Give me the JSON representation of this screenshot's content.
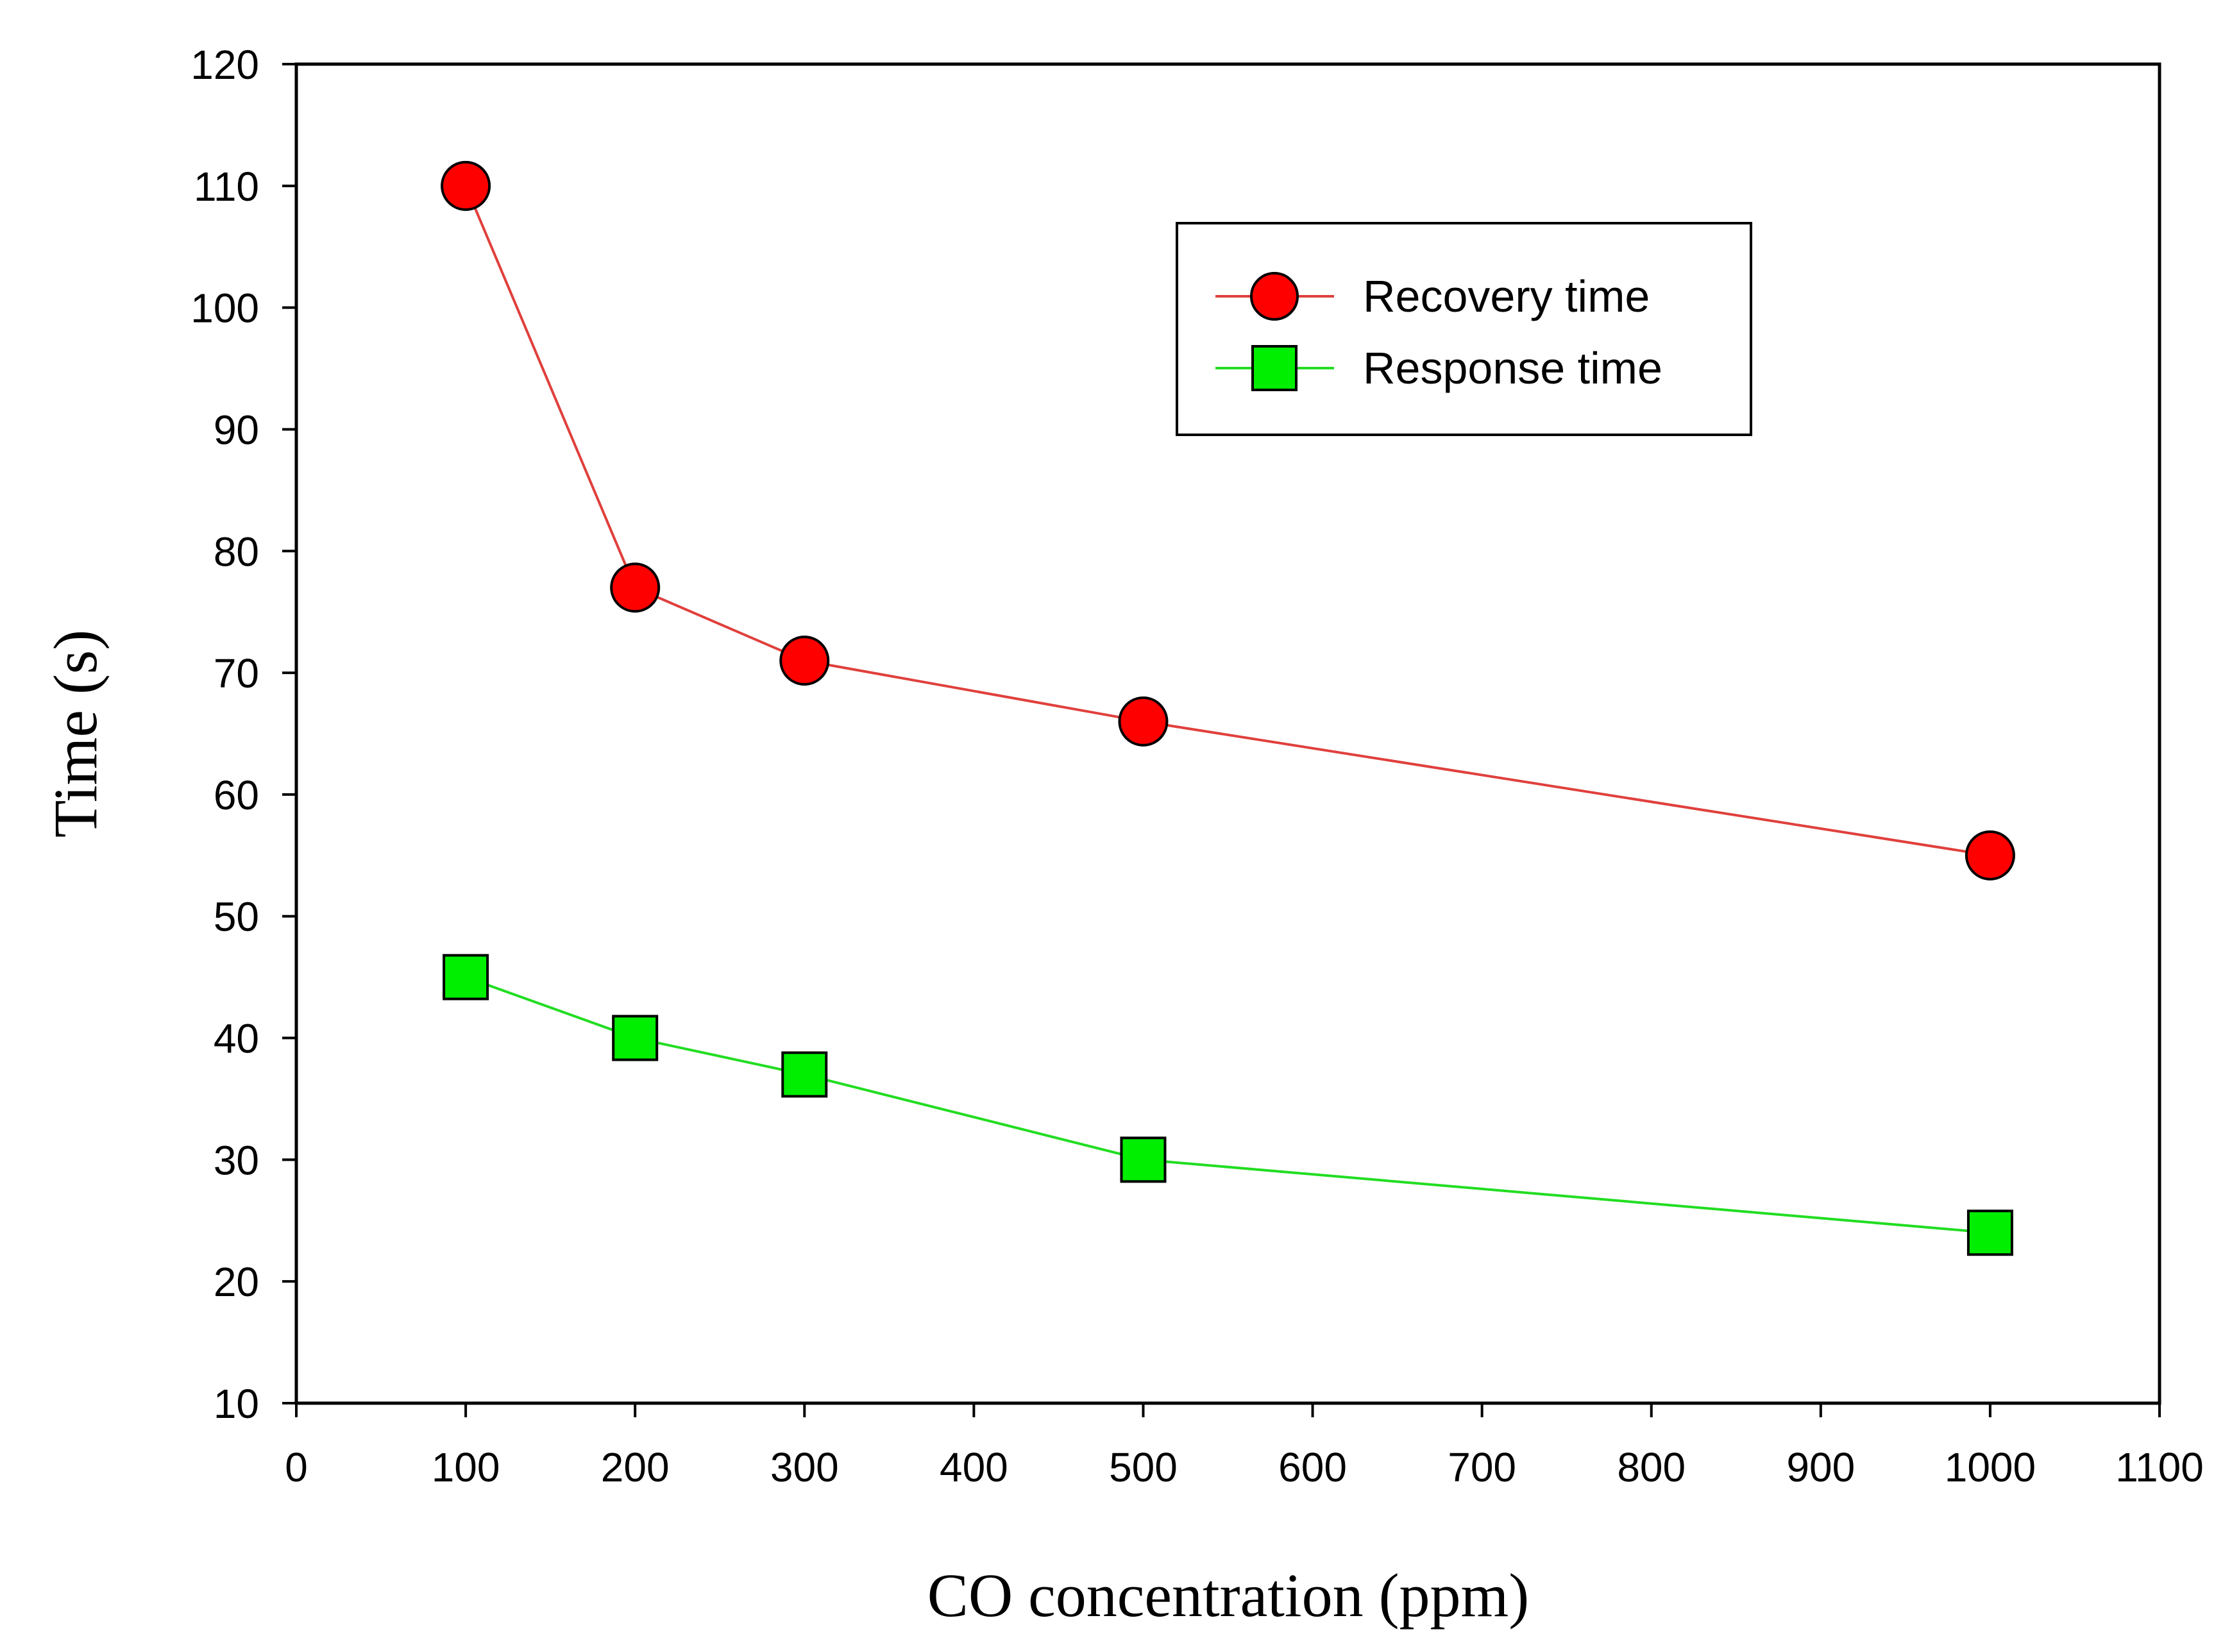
{
  "chart_data": {
    "type": "line",
    "title": "",
    "xlabel": "CO concentration (ppm)",
    "ylabel": "Time (s)",
    "xlim": [
      0,
      1100
    ],
    "ylim": [
      10,
      120
    ],
    "xticks": [
      0,
      100,
      200,
      300,
      400,
      500,
      600,
      700,
      800,
      900,
      1000,
      1100
    ],
    "yticks": [
      10,
      20,
      30,
      40,
      50,
      60,
      70,
      80,
      90,
      100,
      110,
      120
    ],
    "grid": false,
    "legend_position": "top-right",
    "x": [
      100,
      200,
      300,
      500,
      1000
    ],
    "series": [
      {
        "name": "Recovery time",
        "values": [
          110,
          77,
          71,
          66,
          55
        ],
        "marker": "circle",
        "line_color": "#e0403c",
        "marker_color": "#ff0000"
      },
      {
        "name": "Response time",
        "values": [
          45,
          40,
          37,
          30,
          24
        ],
        "marker": "square",
        "line_color": "#22dd22",
        "marker_color": "#00ee00"
      }
    ]
  }
}
